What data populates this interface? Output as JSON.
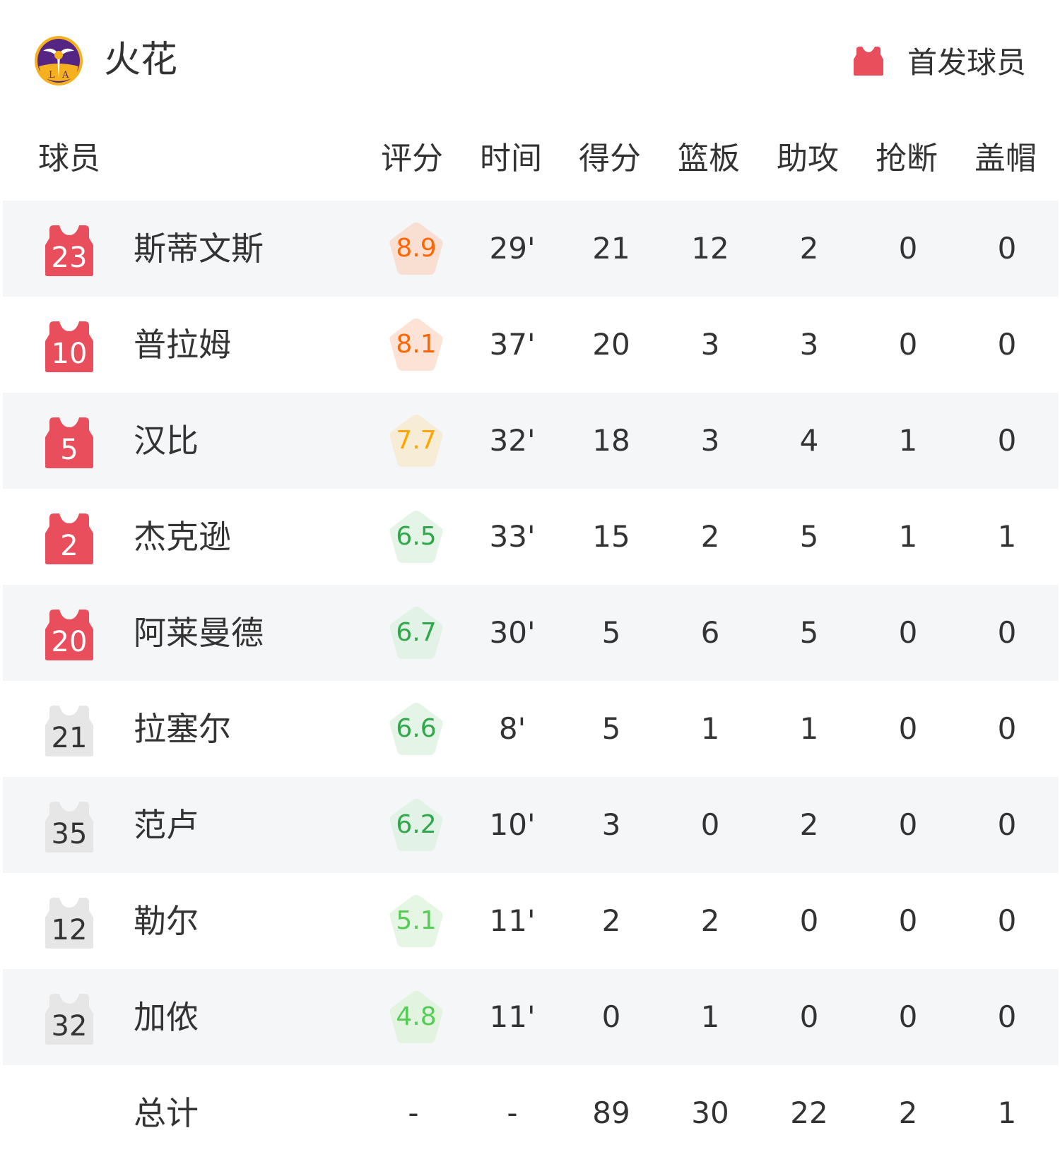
{
  "team": {
    "name": "火花",
    "logo_icon": "los-angeles-sparks-logo"
  },
  "legend": {
    "label": "首发球员",
    "icon": "jersey-icon",
    "color": "#e84e5c"
  },
  "columns": {
    "player": "球员",
    "rating": "评分",
    "time": "时间",
    "points": "得分",
    "rebounds": "篮板",
    "assists": "助攻",
    "steals": "抢断",
    "blocks": "盖帽"
  },
  "colors": {
    "starter_jersey": "#e84e5c",
    "bench_jersey": "#e6e6e6",
    "row_alt": "#f5f6f8"
  },
  "players": [
    {
      "number": "23",
      "name": "斯蒂文斯",
      "starter": true,
      "rating": "8.9",
      "rating_color": "#ff6600",
      "rating_bg": "#f8dfd2",
      "time": "29'",
      "points": "21",
      "rebounds": "12",
      "assists": "2",
      "steals": "0",
      "blocks": "0"
    },
    {
      "number": "10",
      "name": "普拉姆",
      "starter": true,
      "rating": "8.1",
      "rating_color": "#ff6600",
      "rating_bg": "#fde3d6",
      "time": "37'",
      "points": "20",
      "rebounds": "3",
      "assists": "3",
      "steals": "0",
      "blocks": "0"
    },
    {
      "number": "5",
      "name": "汉比",
      "starter": true,
      "rating": "7.7",
      "rating_color": "#ffa500",
      "rating_bg": "#f7ecd6",
      "time": "32'",
      "points": "18",
      "rebounds": "3",
      "assists": "4",
      "steals": "1",
      "blocks": "0"
    },
    {
      "number": "2",
      "name": "杰克逊",
      "starter": true,
      "rating": "6.5",
      "rating_color": "#2ea84a",
      "rating_bg": "#e4f5e8",
      "time": "33'",
      "points": "15",
      "rebounds": "2",
      "assists": "5",
      "steals": "1",
      "blocks": "1"
    },
    {
      "number": "20",
      "name": "阿莱曼德",
      "starter": true,
      "rating": "6.7",
      "rating_color": "#2ea84a",
      "rating_bg": "#e2f2e6",
      "time": "30'",
      "points": "5",
      "rebounds": "6",
      "assists": "5",
      "steals": "0",
      "blocks": "0"
    },
    {
      "number": "21",
      "name": "拉塞尔",
      "starter": false,
      "rating": "6.6",
      "rating_color": "#2ea84a",
      "rating_bg": "#e4f5e8",
      "time": "8'",
      "points": "5",
      "rebounds": "1",
      "assists": "1",
      "steals": "0",
      "blocks": "0"
    },
    {
      "number": "35",
      "name": "范卢",
      "starter": false,
      "rating": "6.2",
      "rating_color": "#2ea84a",
      "rating_bg": "#e2f2e6",
      "time": "10'",
      "points": "3",
      "rebounds": "0",
      "assists": "2",
      "steals": "0",
      "blocks": "0"
    },
    {
      "number": "12",
      "name": "勒尔",
      "starter": false,
      "rating": "5.1",
      "rating_color": "#55cc55",
      "rating_bg": "#e6f6e4",
      "time": "11'",
      "points": "2",
      "rebounds": "2",
      "assists": "0",
      "steals": "0",
      "blocks": "0"
    },
    {
      "number": "32",
      "name": "加侬",
      "starter": false,
      "rating": "4.8",
      "rating_color": "#55cc55",
      "rating_bg": "#e2f3e0",
      "time": "11'",
      "points": "0",
      "rebounds": "1",
      "assists": "0",
      "steals": "0",
      "blocks": "0"
    }
  ],
  "totals": {
    "label": "总计",
    "rating": "-",
    "time": "-",
    "points": "89",
    "rebounds": "30",
    "assists": "22",
    "steals": "2",
    "blocks": "1"
  }
}
